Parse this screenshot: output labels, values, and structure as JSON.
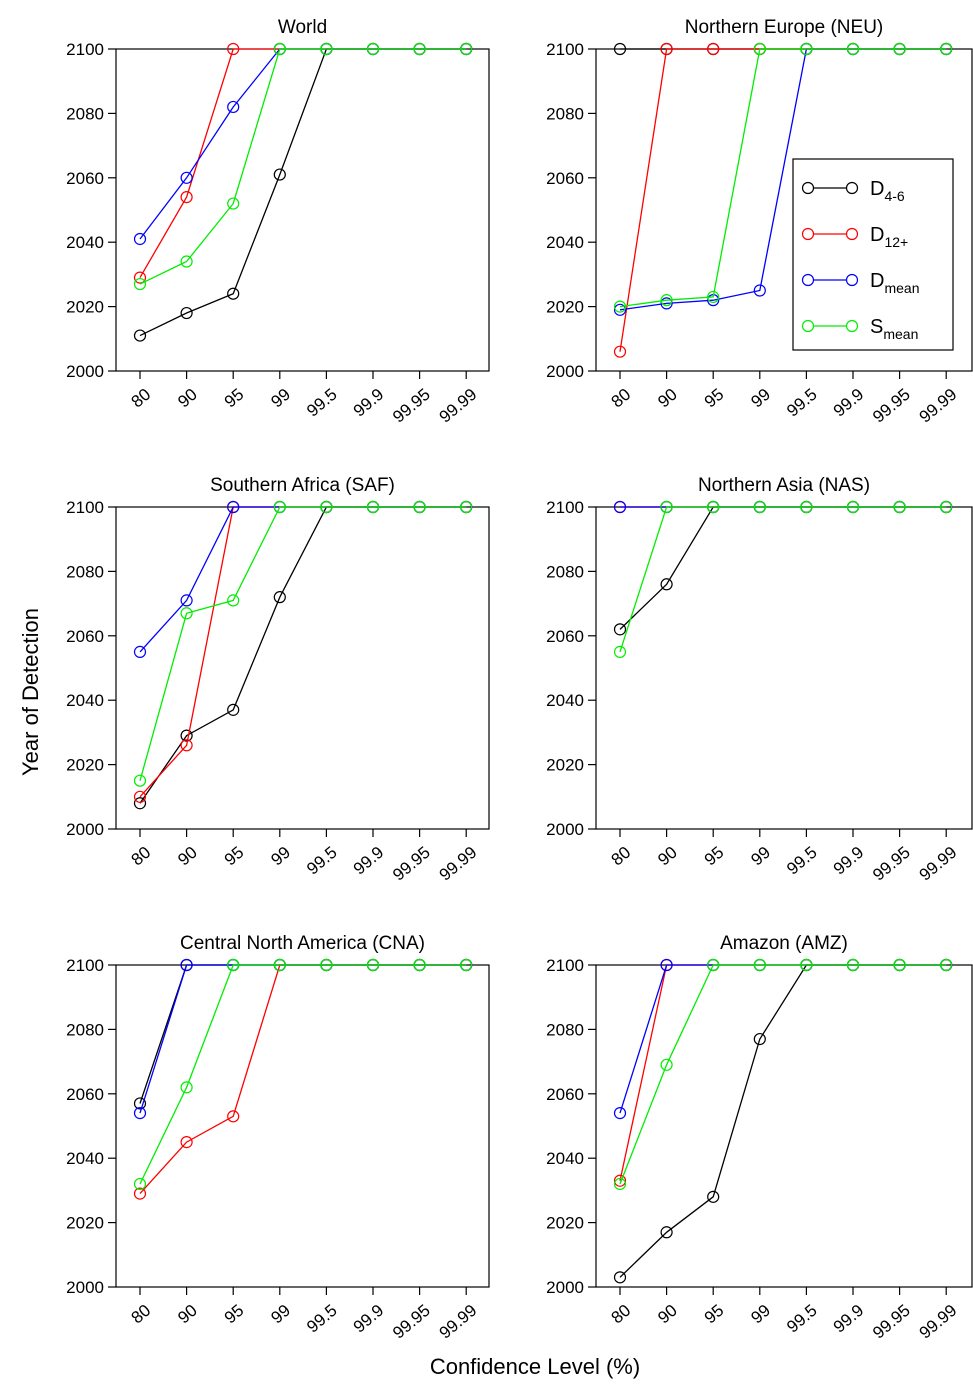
{
  "figure": {
    "ylabel": "Year of Detection",
    "xlabel": "Confidence Level (%)"
  },
  "legend": {
    "position": "top-right of Northern Europe panel",
    "entries": [
      {
        "base": "D",
        "sub": "4-6",
        "color": "#000000"
      },
      {
        "base": "D",
        "sub": "12+",
        "color": "#ff0000"
      },
      {
        "base": "D",
        "sub": "mean",
        "color": "#0000ff"
      },
      {
        "base": "S",
        "sub": "mean",
        "color": "#00ee00"
      }
    ]
  },
  "chart_data": [
    {
      "type": "line",
      "title": "World",
      "categories": [
        "80",
        "90",
        "95",
        "99",
        "99.5",
        "99.9",
        "99.95",
        "99.99"
      ],
      "ylim": [
        2000,
        2100
      ],
      "yticks": [
        2000,
        2020,
        2040,
        2060,
        2080,
        2100
      ],
      "series": [
        {
          "name": "D4-6",
          "color": "#000000",
          "values": [
            2011,
            2018,
            2024,
            2061,
            2100,
            2100,
            2100,
            2100
          ]
        },
        {
          "name": "D12+",
          "color": "#ff0000",
          "values": [
            2029,
            2054,
            2100,
            2100,
            2100,
            2100,
            2100,
            2100
          ]
        },
        {
          "name": "Dmean",
          "color": "#0000ff",
          "values": [
            2041,
            2060,
            2082,
            2100,
            2100,
            2100,
            2100,
            2100
          ]
        },
        {
          "name": "Smean",
          "color": "#00ee00",
          "values": [
            2027,
            2034,
            2052,
            2100,
            2100,
            2100,
            2100,
            2100
          ]
        }
      ]
    },
    {
      "type": "line",
      "title": "Northern Europe (NEU)",
      "categories": [
        "80",
        "90",
        "95",
        "99",
        "99.5",
        "99.9",
        "99.95",
        "99.99"
      ],
      "ylim": [
        2000,
        2100
      ],
      "yticks": [
        2000,
        2020,
        2040,
        2060,
        2080,
        2100
      ],
      "series": [
        {
          "name": "D4-6",
          "color": "#000000",
          "values": [
            2100,
            2100,
            2100,
            2100,
            2100,
            2100,
            2100,
            2100
          ]
        },
        {
          "name": "D12+",
          "color": "#ff0000",
          "values": [
            2006,
            2100,
            2100,
            2100,
            2100,
            2100,
            2100,
            2100
          ]
        },
        {
          "name": "Dmean",
          "color": "#0000ff",
          "values": [
            2019,
            2021,
            2022,
            2025,
            2100,
            2100,
            2100,
            2100
          ]
        },
        {
          "name": "Smean",
          "color": "#00ee00",
          "values": [
            2020,
            2022,
            2023,
            2100,
            2100,
            2100,
            2100,
            2100
          ]
        }
      ]
    },
    {
      "type": "line",
      "title": "Southern Africa (SAF)",
      "categories": [
        "80",
        "90",
        "95",
        "99",
        "99.5",
        "99.9",
        "99.95",
        "99.99"
      ],
      "ylim": [
        2000,
        2100
      ],
      "yticks": [
        2000,
        2020,
        2040,
        2060,
        2080,
        2100
      ],
      "series": [
        {
          "name": "D4-6",
          "color": "#000000",
          "values": [
            2008,
            2029,
            2037,
            2072,
            2100,
            2100,
            2100,
            2100
          ]
        },
        {
          "name": "D12+",
          "color": "#ff0000",
          "values": [
            2010,
            2026,
            2100,
            2100,
            2100,
            2100,
            2100,
            2100
          ]
        },
        {
          "name": "Dmean",
          "color": "#0000ff",
          "values": [
            2055,
            2071,
            2100,
            2100,
            2100,
            2100,
            2100,
            2100
          ]
        },
        {
          "name": "Smean",
          "color": "#00ee00",
          "values": [
            2015,
            2067,
            2071,
            2100,
            2100,
            2100,
            2100,
            2100
          ]
        }
      ]
    },
    {
      "type": "line",
      "title": "Northern Asia (NAS)",
      "categories": [
        "80",
        "90",
        "95",
        "99",
        "99.5",
        "99.9",
        "99.95",
        "99.99"
      ],
      "ylim": [
        2000,
        2100
      ],
      "yticks": [
        2000,
        2020,
        2040,
        2060,
        2080,
        2100
      ],
      "series": [
        {
          "name": "D4-6",
          "color": "#000000",
          "values": [
            2062,
            2076,
            2100,
            2100,
            2100,
            2100,
            2100,
            2100
          ]
        },
        {
          "name": "D12+",
          "color": "#ff0000",
          "values": [
            2100,
            2100,
            2100,
            2100,
            2100,
            2100,
            2100,
            2100
          ]
        },
        {
          "name": "Dmean",
          "color": "#0000ff",
          "values": [
            2100,
            2100,
            2100,
            2100,
            2100,
            2100,
            2100,
            2100
          ]
        },
        {
          "name": "Smean",
          "color": "#00ee00",
          "values": [
            2055,
            2100,
            2100,
            2100,
            2100,
            2100,
            2100,
            2100
          ]
        }
      ]
    },
    {
      "type": "line",
      "title": "Central North America (CNA)",
      "categories": [
        "80",
        "90",
        "95",
        "99",
        "99.5",
        "99.9",
        "99.95",
        "99.99"
      ],
      "ylim": [
        2000,
        2100
      ],
      "yticks": [
        2000,
        2020,
        2040,
        2060,
        2080,
        2100
      ],
      "series": [
        {
          "name": "D4-6",
          "color": "#000000",
          "values": [
            2057,
            2100,
            2100,
            2100,
            2100,
            2100,
            2100,
            2100
          ]
        },
        {
          "name": "D12+",
          "color": "#ff0000",
          "values": [
            2029,
            2045,
            2053,
            2100,
            2100,
            2100,
            2100,
            2100
          ]
        },
        {
          "name": "Dmean",
          "color": "#0000ff",
          "values": [
            2054,
            2100,
            2100,
            2100,
            2100,
            2100,
            2100,
            2100
          ]
        },
        {
          "name": "Smean",
          "color": "#00ee00",
          "values": [
            2032,
            2062,
            2100,
            2100,
            2100,
            2100,
            2100,
            2100
          ]
        }
      ]
    },
    {
      "type": "line",
      "title": "Amazon (AMZ)",
      "categories": [
        "80",
        "90",
        "95",
        "99",
        "99.5",
        "99.9",
        "99.95",
        "99.99"
      ],
      "ylim": [
        2000,
        2100
      ],
      "yticks": [
        2000,
        2020,
        2040,
        2060,
        2080,
        2100
      ],
      "series": [
        {
          "name": "D4-6",
          "color": "#000000",
          "values": [
            2003,
            2017,
            2028,
            2077,
            2100,
            2100,
            2100,
            2100
          ]
        },
        {
          "name": "D12+",
          "color": "#ff0000",
          "values": [
            2033,
            2100,
            2100,
            2100,
            2100,
            2100,
            2100,
            2100
          ]
        },
        {
          "name": "Dmean",
          "color": "#0000ff",
          "values": [
            2054,
            2100,
            2100,
            2100,
            2100,
            2100,
            2100,
            2100
          ]
        },
        {
          "name": "Smean",
          "color": "#00ee00",
          "values": [
            2032,
            2069,
            2100,
            2100,
            2100,
            2100,
            2100,
            2100
          ]
        }
      ]
    }
  ]
}
